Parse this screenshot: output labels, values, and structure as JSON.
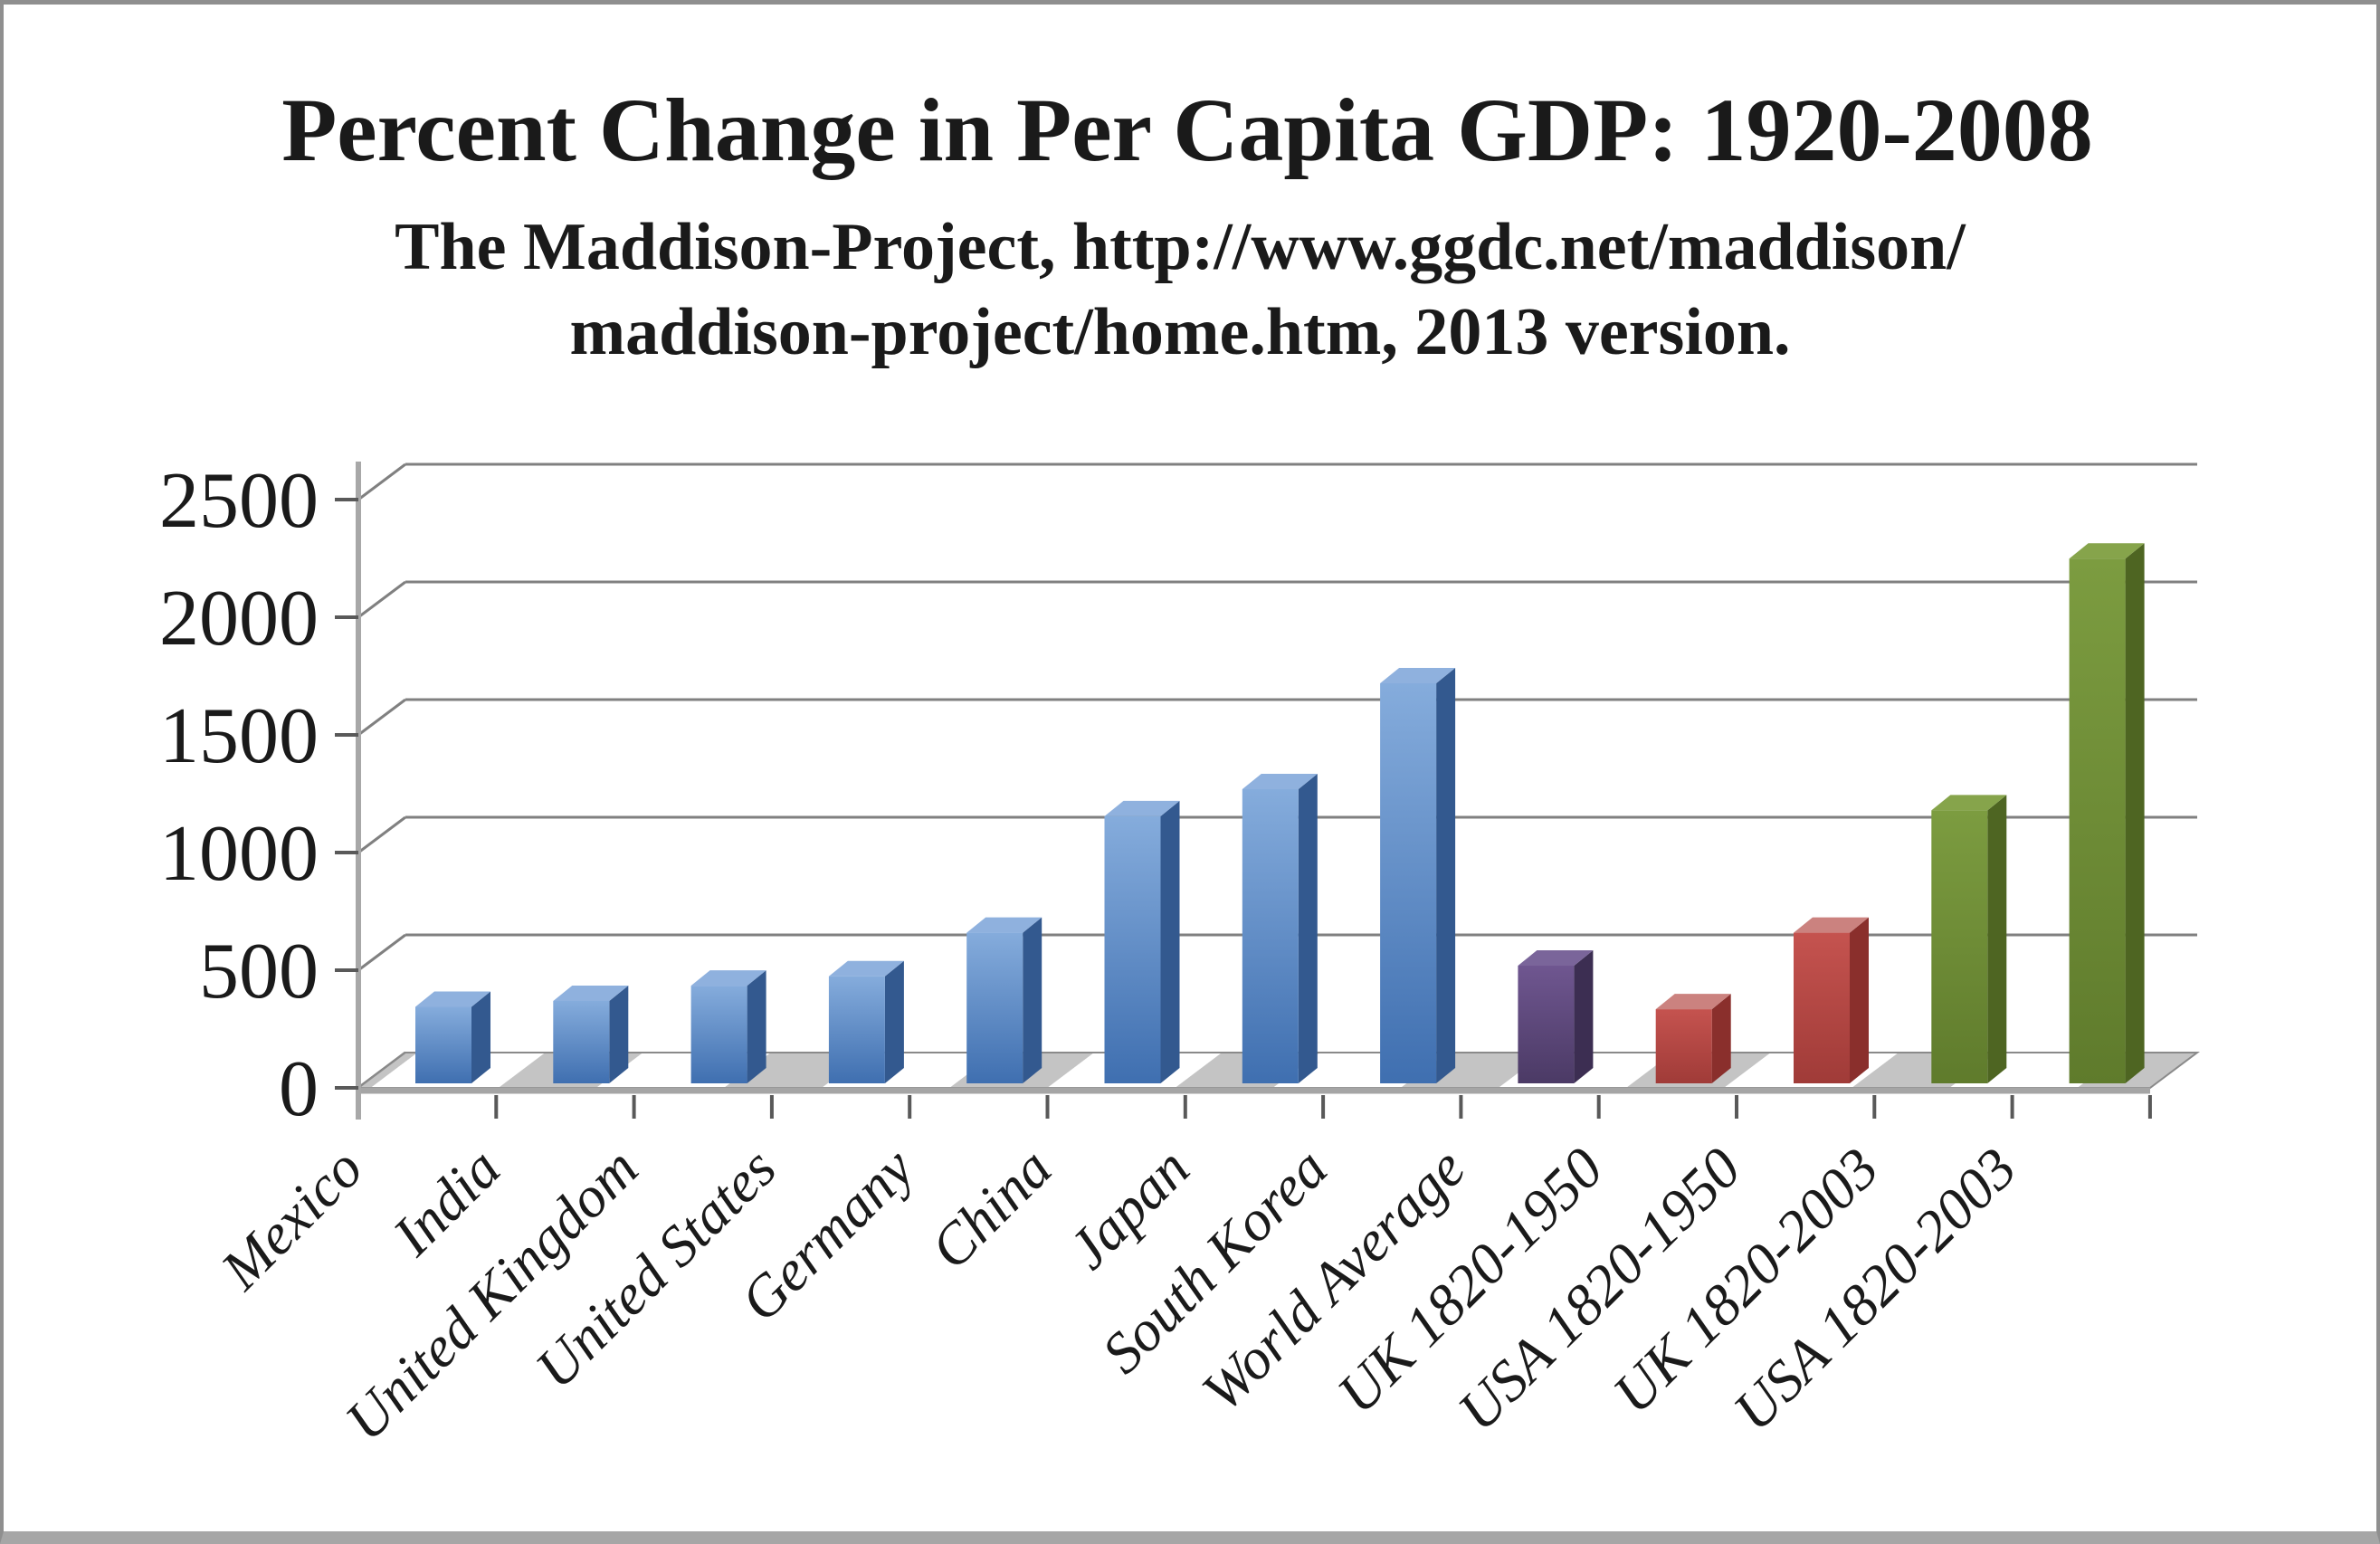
{
  "chart_data": {
    "type": "bar",
    "effect": "3d-cylinder-free pseudo-3D column chart (Excel style)",
    "title": "Percent Change in Per Capita GDP: 1920-2008",
    "subtitle_lines": [
      "The Maddison-Project, http://www.ggdc.net/maddison/",
      "maddison-project/home.htm, 2013 version."
    ],
    "categories": [
      "Mexico",
      "India",
      "United Kingdom",
      "United States",
      "Germany",
      "China",
      "Japan",
      "South Korea",
      "World Average",
      "UK 1820-1950",
      "USA 1820-1950",
      "UK 1820-2003",
      "USA 1820-2003"
    ],
    "values": [
      325,
      350,
      415,
      455,
      640,
      1135,
      1250,
      1700,
      500,
      315,
      640,
      1160,
      2230
    ],
    "bar_colors": [
      "blue",
      "blue",
      "blue",
      "blue",
      "blue",
      "blue",
      "blue",
      "blue",
      "purple",
      "red",
      "red",
      "green",
      "green"
    ],
    "series_palette": {
      "blue": {
        "front_top": "#85acdc",
        "front_bottom": "#3f6fb0",
        "top": "#8fb1de",
        "side": "#33598f"
      },
      "purple": {
        "front_top": "#6f5690",
        "front_bottom": "#4b3a65",
        "top": "#7a659a",
        "side": "#3c2e52"
      },
      "red": {
        "front_top": "#c5534f",
        "front_bottom": "#a03b38",
        "top": "#cb827f",
        "side": "#8a2f2c"
      },
      "green": {
        "front_top": "#7c9c40",
        "front_bottom": "#5f7b2c",
        "top": "#86a44b",
        "side": "#4e6522"
      }
    },
    "y_ticks": [
      0,
      500,
      1000,
      1500,
      2000,
      2500
    ],
    "ylim": [
      0,
      2500
    ],
    "ylabel": "",
    "xlabel": "",
    "grid": true,
    "legend": false,
    "x_label_rotation_deg": -45,
    "axis_color": "#a8a8a8",
    "gridline_color": "#808080",
    "tick_color": "#595959",
    "floor_stripe_color": "#c4c4c4"
  }
}
